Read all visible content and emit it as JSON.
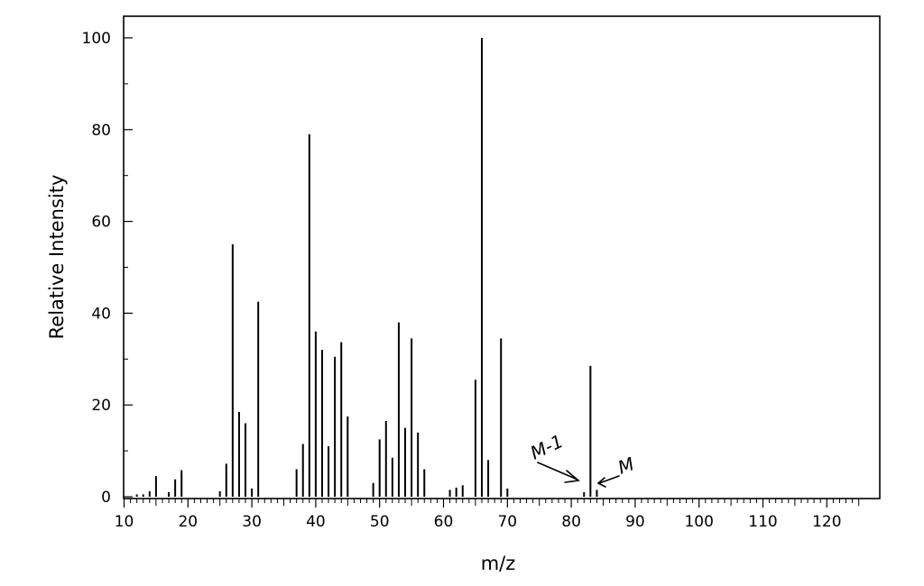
{
  "chart_data": {
    "type": "bar",
    "xlabel": "m/z",
    "ylabel": "Relative Intensity",
    "xlim": [
      10,
      126
    ],
    "ylim": [
      0,
      104
    ],
    "xticks": [
      10,
      20,
      30,
      40,
      50,
      60,
      70,
      80,
      90,
      100,
      110,
      120
    ],
    "yticks": [
      0,
      20,
      40,
      60,
      80,
      100
    ],
    "grid": false,
    "x": [
      12,
      13,
      14,
      15,
      17,
      18,
      19,
      25,
      26,
      27,
      28,
      29,
      30,
      31,
      37,
      38,
      39,
      40,
      41,
      42,
      43,
      44,
      45,
      49,
      50,
      51,
      52,
      53,
      54,
      55,
      56,
      57,
      61,
      62,
      63,
      65,
      66,
      67,
      69,
      70,
      82,
      83,
      84
    ],
    "values": [
      0.5,
      0.5,
      1.2,
      4.5,
      1.0,
      3.8,
      5.8,
      1.2,
      7.2,
      55,
      18.5,
      16,
      1.8,
      42.5,
      6,
      11.5,
      79,
      36,
      32,
      11,
      30.5,
      33.7,
      17.5,
      3,
      12.5,
      16.5,
      8.5,
      38,
      15,
      34.5,
      14,
      6,
      1.5,
      2,
      2.5,
      25.5,
      100,
      8,
      34.5,
      1.8,
      1,
      28.5,
      1.5
    ],
    "annotations": [
      {
        "text": "M-1",
        "x": 82
      },
      {
        "text": "M",
        "x": 84
      }
    ]
  }
}
